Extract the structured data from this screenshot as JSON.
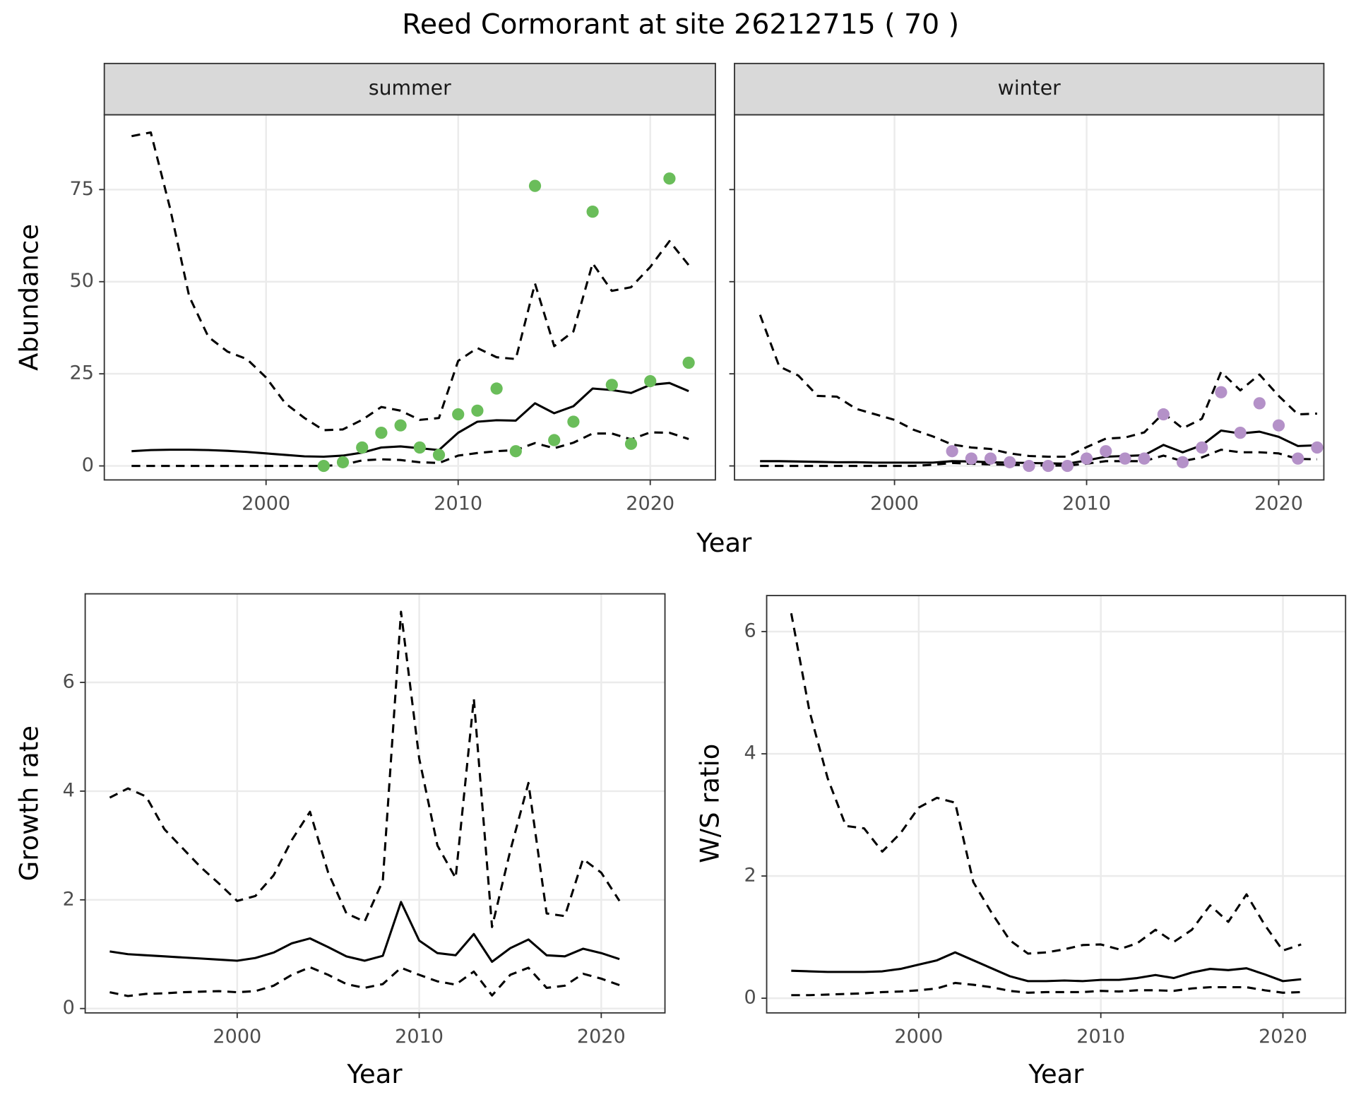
{
  "title": "Reed Cormorant at site 26212715 ( 70 )",
  "chart_data": [
    {
      "type": "line",
      "strip": "summer",
      "ylabel": "Abundance",
      "xlabel": "Year",
      "grid": true,
      "x": [
        1993,
        1994,
        1995,
        1996,
        1997,
        1998,
        1999,
        2000,
        2001,
        2002,
        2003,
        2004,
        2005,
        2006,
        2007,
        2008,
        2009,
        2010,
        2011,
        2012,
        2013,
        2014,
        2015,
        2016,
        2017,
        2018,
        2019,
        2020,
        2021,
        2022
      ],
      "xlim": [
        1991.58,
        2023.39
      ],
      "xticks": [
        2000,
        2010,
        2020
      ],
      "ylim": [
        -3.8,
        95.3
      ],
      "yticks": [
        0,
        25,
        50,
        75
      ],
      "series": [
        {
          "type": "line",
          "dash": "solid",
          "color": "#000000",
          "values": [
            4.0,
            4.3,
            4.4,
            4.4,
            4.3,
            4.1,
            3.8,
            3.4,
            3.0,
            2.6,
            2.5,
            2.8,
            3.6,
            5.0,
            5.3,
            4.8,
            4.3,
            9.0,
            12.0,
            12.4,
            12.3,
            17.0,
            14.3,
            16.2,
            21.0,
            20.6,
            19.8,
            22.0,
            22.5,
            20.3
          ]
        },
        {
          "type": "line",
          "dash": "dashed",
          "color": "#000000",
          "values": [
            89.5,
            90.5,
            70,
            46,
            35,
            31,
            29,
            24,
            17,
            13,
            9.7,
            9.9,
            12.5,
            16,
            15,
            12.5,
            13,
            28.5,
            32,
            29.5,
            29,
            49.5,
            32.5,
            36.5,
            55,
            47.5,
            48.5,
            54,
            61,
            54.5
          ]
        },
        {
          "type": "line",
          "dash": "dashed",
          "color": "#000000",
          "values": [
            0,
            0,
            0,
            0,
            0,
            0,
            0,
            0,
            0,
            0,
            0,
            0.3,
            1.5,
            1.8,
            1.6,
            1.0,
            0.8,
            2.8,
            3.5,
            4.0,
            4.3,
            6.2,
            4.8,
            6.3,
            8.8,
            8.8,
            7.2,
            9.1,
            9.0,
            7.3
          ]
        },
        {
          "type": "scatter",
          "color": "#6abd5a",
          "values": [
            null,
            null,
            null,
            null,
            null,
            null,
            null,
            null,
            null,
            null,
            0,
            1,
            5,
            9,
            11,
            5,
            3,
            14,
            15,
            21,
            4,
            76,
            7,
            12,
            69,
            22,
            6,
            23,
            78,
            28
          ]
        }
      ]
    },
    {
      "type": "line",
      "strip": "winter",
      "grid": true,
      "x": [
        1993,
        1994,
        1995,
        1996,
        1997,
        1998,
        1999,
        2000,
        2001,
        2002,
        2003,
        2004,
        2005,
        2006,
        2007,
        2008,
        2009,
        2010,
        2011,
        2012,
        2013,
        2014,
        2015,
        2016,
        2017,
        2018,
        2019,
        2020,
        2021,
        2022
      ],
      "xlim": [
        1991.67,
        2022.35
      ],
      "xticks": [
        2000,
        2010,
        2020
      ],
      "ylim": [
        -3.8,
        95.3
      ],
      "yticks": [
        0,
        25,
        50,
        75
      ],
      "series": [
        {
          "type": "line",
          "dash": "solid",
          "color": "#000000",
          "values": [
            1.3,
            1.3,
            1.2,
            1.1,
            1.0,
            1.0,
            0.9,
            0.9,
            0.9,
            0.9,
            1.3,
            1.2,
            1.0,
            0.9,
            0.8,
            0.7,
            0.6,
            1.5,
            2.5,
            2.7,
            2.9,
            5.7,
            3.7,
            5.6,
            9.6,
            8.8,
            9.3,
            7.9,
            5.4,
            5.6
          ]
        },
        {
          "type": "line",
          "dash": "dashed",
          "color": "#000000",
          "values": [
            41,
            27,
            24.5,
            19,
            18.8,
            15.5,
            14,
            12.5,
            9.8,
            8,
            5.8,
            5.0,
            4.6,
            3.4,
            2.7,
            2.5,
            2.5,
            5.1,
            7.4,
            7.7,
            9.1,
            14.3,
            10.2,
            12.8,
            25.5,
            20.5,
            24.8,
            19,
            14,
            14.2
          ]
        },
        {
          "type": "line",
          "dash": "dashed",
          "color": "#000000",
          "values": [
            0,
            0,
            0,
            0,
            0,
            0,
            0,
            0,
            0,
            0.3,
            0.8,
            0.6,
            0.4,
            0.3,
            0.2,
            0.1,
            0.1,
            0.6,
            1.3,
            1.3,
            1.3,
            2.8,
            1.3,
            2.3,
            4.4,
            3.7,
            3.7,
            3.4,
            1.9,
            1.8
          ]
        },
        {
          "type": "scatter",
          "color": "#b491c8",
          "values": [
            null,
            null,
            null,
            null,
            null,
            null,
            null,
            null,
            null,
            null,
            4,
            2,
            2,
            1,
            0,
            0,
            0,
            2,
            4,
            2,
            2,
            14,
            1,
            5,
            20,
            9,
            17,
            11,
            2,
            5
          ]
        }
      ]
    },
    {
      "type": "line",
      "ylabel": "Growth rate",
      "xlabel": "Year",
      "grid": true,
      "x": [
        1993,
        1994,
        1995,
        1996,
        1997,
        1998,
        1999,
        2000,
        2001,
        2002,
        2003,
        2004,
        2005,
        2006,
        2007,
        2008,
        2009,
        2010,
        2011,
        2012,
        2013,
        2014,
        2015,
        2016,
        2017,
        2018,
        2019,
        2020,
        2021
      ],
      "xlim": [
        1991.65,
        2023.5
      ],
      "xticks": [
        2000,
        2010,
        2020
      ],
      "ylim": [
        -0.08,
        7.63
      ],
      "yticks": [
        0,
        2,
        4,
        6
      ],
      "series": [
        {
          "type": "line",
          "dash": "solid",
          "color": "#000000",
          "values": [
            1.05,
            1.0,
            0.98,
            0.96,
            0.94,
            0.92,
            0.9,
            0.88,
            0.93,
            1.03,
            1.2,
            1.29,
            1.13,
            0.96,
            0.88,
            0.97,
            1.96,
            1.25,
            1.02,
            0.98,
            1.37,
            0.86,
            1.11,
            1.27,
            0.98,
            0.96,
            1.1,
            1.02,
            0.91
          ]
        },
        {
          "type": "line",
          "dash": "dashed",
          "color": "#000000",
          "values": [
            3.88,
            4.05,
            3.9,
            3.3,
            2.95,
            2.6,
            2.3,
            1.98,
            2.07,
            2.45,
            3.1,
            3.62,
            2.5,
            1.75,
            1.6,
            2.35,
            7.3,
            4.6,
            3.0,
            2.4,
            5.7,
            1.5,
            2.9,
            4.15,
            1.75,
            1.7,
            2.75,
            2.5,
            1.98
          ]
        },
        {
          "type": "line",
          "dash": "dashed",
          "color": "#000000",
          "values": [
            0.3,
            0.23,
            0.27,
            0.28,
            0.3,
            0.31,
            0.32,
            0.3,
            0.32,
            0.42,
            0.62,
            0.76,
            0.62,
            0.45,
            0.38,
            0.45,
            0.75,
            0.62,
            0.5,
            0.44,
            0.68,
            0.24,
            0.62,
            0.75,
            0.38,
            0.42,
            0.64,
            0.55,
            0.43
          ]
        }
      ]
    },
    {
      "type": "line",
      "ylabel": "W/S ratio",
      "xlabel": "Year",
      "grid": true,
      "x": [
        1993,
        1994,
        1995,
        1996,
        1997,
        1998,
        1999,
        2000,
        2001,
        2002,
        2003,
        2004,
        2005,
        2006,
        2007,
        2008,
        2009,
        2010,
        2011,
        2012,
        2013,
        2014,
        2015,
        2016,
        2017,
        2018,
        2019,
        2020,
        2021
      ],
      "xlim": [
        1991.65,
        2023.44
      ],
      "xticks": [
        2000,
        2010,
        2020
      ],
      "ylim": [
        -0.24,
        6.59
      ],
      "yticks": [
        0,
        2,
        4,
        6
      ],
      "series": [
        {
          "type": "line",
          "dash": "solid",
          "color": "#000000",
          "values": [
            0.45,
            0.44,
            0.43,
            0.43,
            0.43,
            0.44,
            0.48,
            0.55,
            0.62,
            0.75,
            0.62,
            0.49,
            0.36,
            0.28,
            0.28,
            0.29,
            0.28,
            0.3,
            0.3,
            0.33,
            0.38,
            0.33,
            0.42,
            0.48,
            0.46,
            0.49,
            0.39,
            0.28,
            0.31
          ]
        },
        {
          "type": "line",
          "dash": "dashed",
          "color": "#000000",
          "values": [
            6.3,
            4.7,
            3.6,
            2.82,
            2.78,
            2.4,
            2.7,
            3.12,
            3.28,
            3.2,
            1.9,
            1.4,
            0.95,
            0.73,
            0.75,
            0.8,
            0.87,
            0.88,
            0.8,
            0.9,
            1.12,
            0.92,
            1.12,
            1.52,
            1.25,
            1.7,
            1.2,
            0.78,
            0.88
          ]
        },
        {
          "type": "line",
          "dash": "dashed",
          "color": "#000000",
          "values": [
            0.05,
            0.05,
            0.06,
            0.07,
            0.08,
            0.1,
            0.11,
            0.13,
            0.16,
            0.25,
            0.22,
            0.18,
            0.12,
            0.09,
            0.1,
            0.1,
            0.1,
            0.12,
            0.11,
            0.13,
            0.13,
            0.12,
            0.16,
            0.18,
            0.18,
            0.18,
            0.13,
            0.09,
            0.1
          ]
        }
      ]
    }
  ]
}
